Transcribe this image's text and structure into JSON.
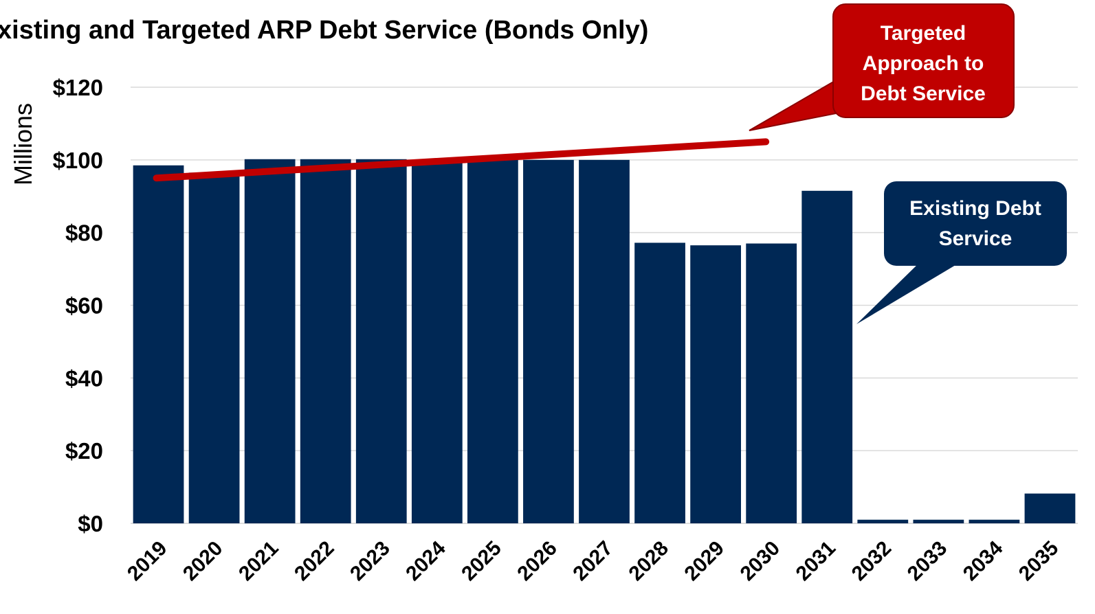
{
  "chart_data": {
    "type": "bar",
    "title": "xisting and Targeted ARP Debt Service (Bonds Only)",
    "ylabel": "Millions",
    "xlabel": "",
    "ylim": [
      0,
      120
    ],
    "ytick_values": [
      0,
      20,
      40,
      60,
      80,
      100,
      120
    ],
    "ytick_labels": [
      "$0",
      "$20",
      "$40",
      "$60",
      "$80",
      "$100",
      "$120"
    ],
    "grid": true,
    "categories": [
      "2019",
      "2020",
      "2021",
      "2022",
      "2023",
      "2024",
      "2025",
      "2026",
      "2027",
      "2028",
      "2029",
      "2030",
      "2031",
      "2032",
      "2033",
      "2034",
      "2035"
    ],
    "series": [
      {
        "name": "Existing Debt Service",
        "color": "#002855",
        "values": [
          98.5,
          96.5,
          100.2,
          100.2,
          100.2,
          99.8,
          100.3,
          100.0,
          100.0,
          77.2,
          76.5,
          77.0,
          91.5,
          1.0,
          1.0,
          1.0,
          8.2
        ]
      },
      {
        "name": "Targeted Approach to Debt Service",
        "type": "line",
        "color": "#c00000",
        "x": [
          "2019",
          "2030"
        ],
        "values": [
          95.0,
          105.0
        ]
      }
    ],
    "annotations": [
      {
        "text": [
          "Targeted",
          "Approach to",
          "Debt Service"
        ],
        "color": "#c00000",
        "points_to": "Targeted Approach to Debt Service",
        "anchor_x": "2030",
        "anchor_y": 108
      },
      {
        "text": [
          "Existing Debt",
          "Service"
        ],
        "color": "#002855",
        "points_to": "Existing Debt Service",
        "anchor_x": "2031",
        "anchor_y": 55
      }
    ]
  }
}
